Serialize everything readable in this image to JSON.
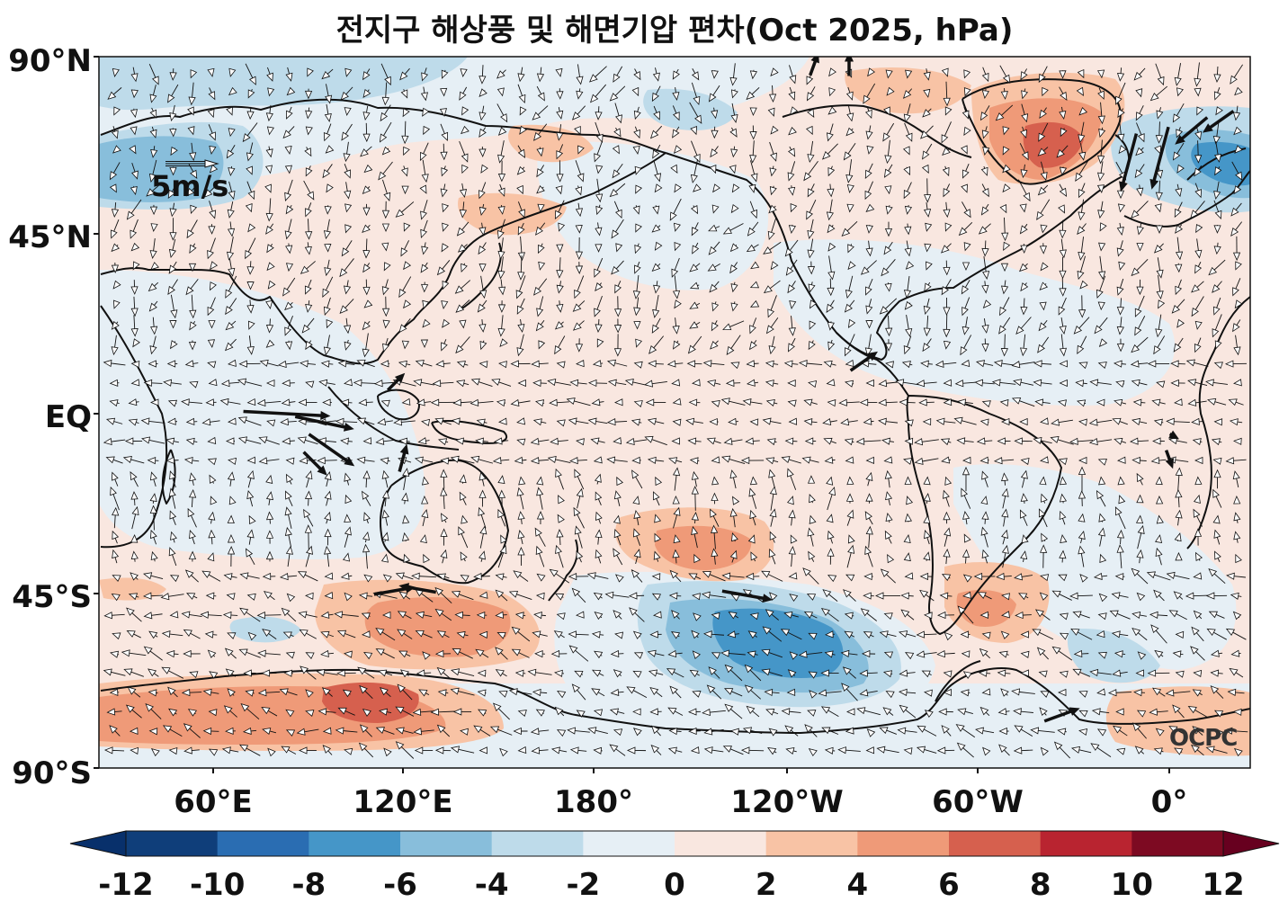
{
  "title": "전지구 해상풍 및 해면기압 편차(Oct 2025, hPa)",
  "lat_labels": [
    "90°N",
    "45°N",
    "EQ",
    "45°S",
    "90°S"
  ],
  "lon_labels": [
    "60°E",
    "120°E",
    "180°",
    "120°W",
    "60°W",
    "0°"
  ],
  "reference_vector": {
    "label": "5m/s"
  },
  "logo_text": "OCPC",
  "colorbar": {
    "ticks": [
      "-12",
      "-10",
      "-8",
      "-6",
      "-4",
      "-2",
      "0",
      "2",
      "4",
      "6",
      "8",
      "10",
      "12"
    ],
    "colors": [
      "#0f3e7a",
      "#2a6db2",
      "#4596c8",
      "#88bedb",
      "#bedbea",
      "#e6eff5",
      "#f9e7e0",
      "#f8c3a5",
      "#ef9a78",
      "#d6604e",
      "#b92430",
      "#7d0a22"
    ],
    "under_color": "#08306b",
    "over_color": "#67001f"
  },
  "palette": {
    "neg1": "#e6eff5",
    "neg2": "#bedbea",
    "neg3": "#88bedb",
    "neg4": "#4596c8",
    "neg5": "#2a6db2",
    "pos1": "#f9e7e0",
    "pos2": "#f8c3a5",
    "pos3": "#ef9a78",
    "pos4": "#d6604e",
    "pos5": "#b92430"
  }
}
